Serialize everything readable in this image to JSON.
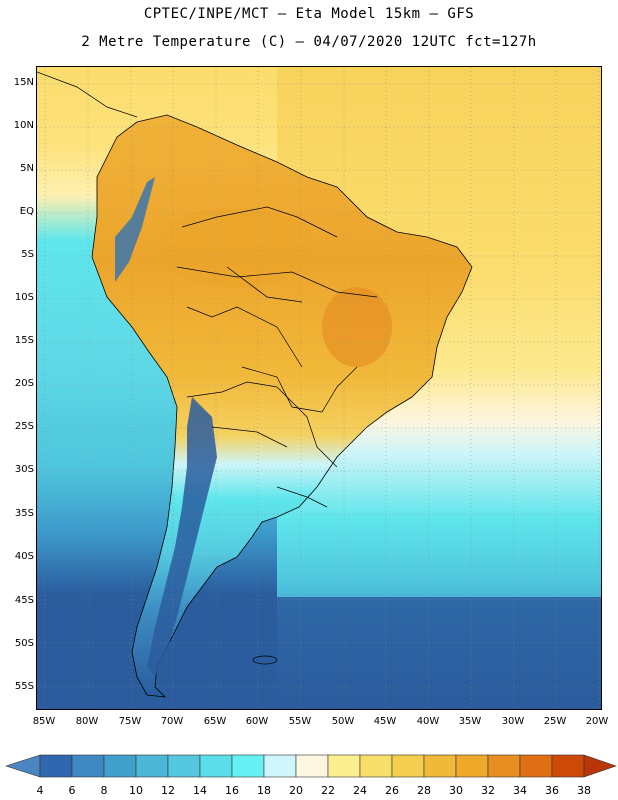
{
  "header": {
    "line1": "CPTEC/INPE/MCT –  Eta Model 15km – GFS",
    "line2": "2 Metre Temperature (C) – 04/07/2020 12UTC fct=127h"
  },
  "map": {
    "lat_labels": [
      "15N",
      "10N",
      "5N",
      "EQ",
      "5S",
      "10S",
      "15S",
      "20S",
      "25S",
      "30S",
      "35S",
      "40S",
      "45S",
      "50S",
      "55S"
    ],
    "lon_labels": [
      "85W",
      "80W",
      "75W",
      "70W",
      "65W",
      "60W",
      "55W",
      "50W",
      "45W",
      "40W",
      "35W",
      "30W",
      "25W",
      "20W"
    ],
    "colors": {
      "ocean_cold": "#2a5c9e",
      "ocean_cool": "#3d8ec4",
      "ocean_mid": "#4fc6dd",
      "ocean_warm": "#5fe6ec",
      "ocean_pale": "#cdf5f8",
      "ocean_cream": "#fdf6e0",
      "ocean_yellow": "#fbdc6c",
      "land_hot": "#eba52a",
      "land_warm": "#f2c24a",
      "andes": "#2f72b4",
      "border": "#000000"
    }
  },
  "colorbar": {
    "labels": [
      "4",
      "6",
      "8",
      "10",
      "12",
      "14",
      "16",
      "18",
      "20",
      "22",
      "24",
      "26",
      "28",
      "30",
      "32",
      "34",
      "36",
      "38"
    ],
    "colors": [
      "#4b86c2",
      "#2f68ae",
      "#3f88c4",
      "#3fa0cc",
      "#4cb7d6",
      "#55c8e0",
      "#5cdeea",
      "#66f2f4",
      "#cff6fa",
      "#fdf7e2",
      "#fbef8f",
      "#f8de6b",
      "#f5cd4f",
      "#f1b93a",
      "#eea82a",
      "#e88f24",
      "#e06e14",
      "#cc4a06",
      "#b8360a"
    ]
  }
}
